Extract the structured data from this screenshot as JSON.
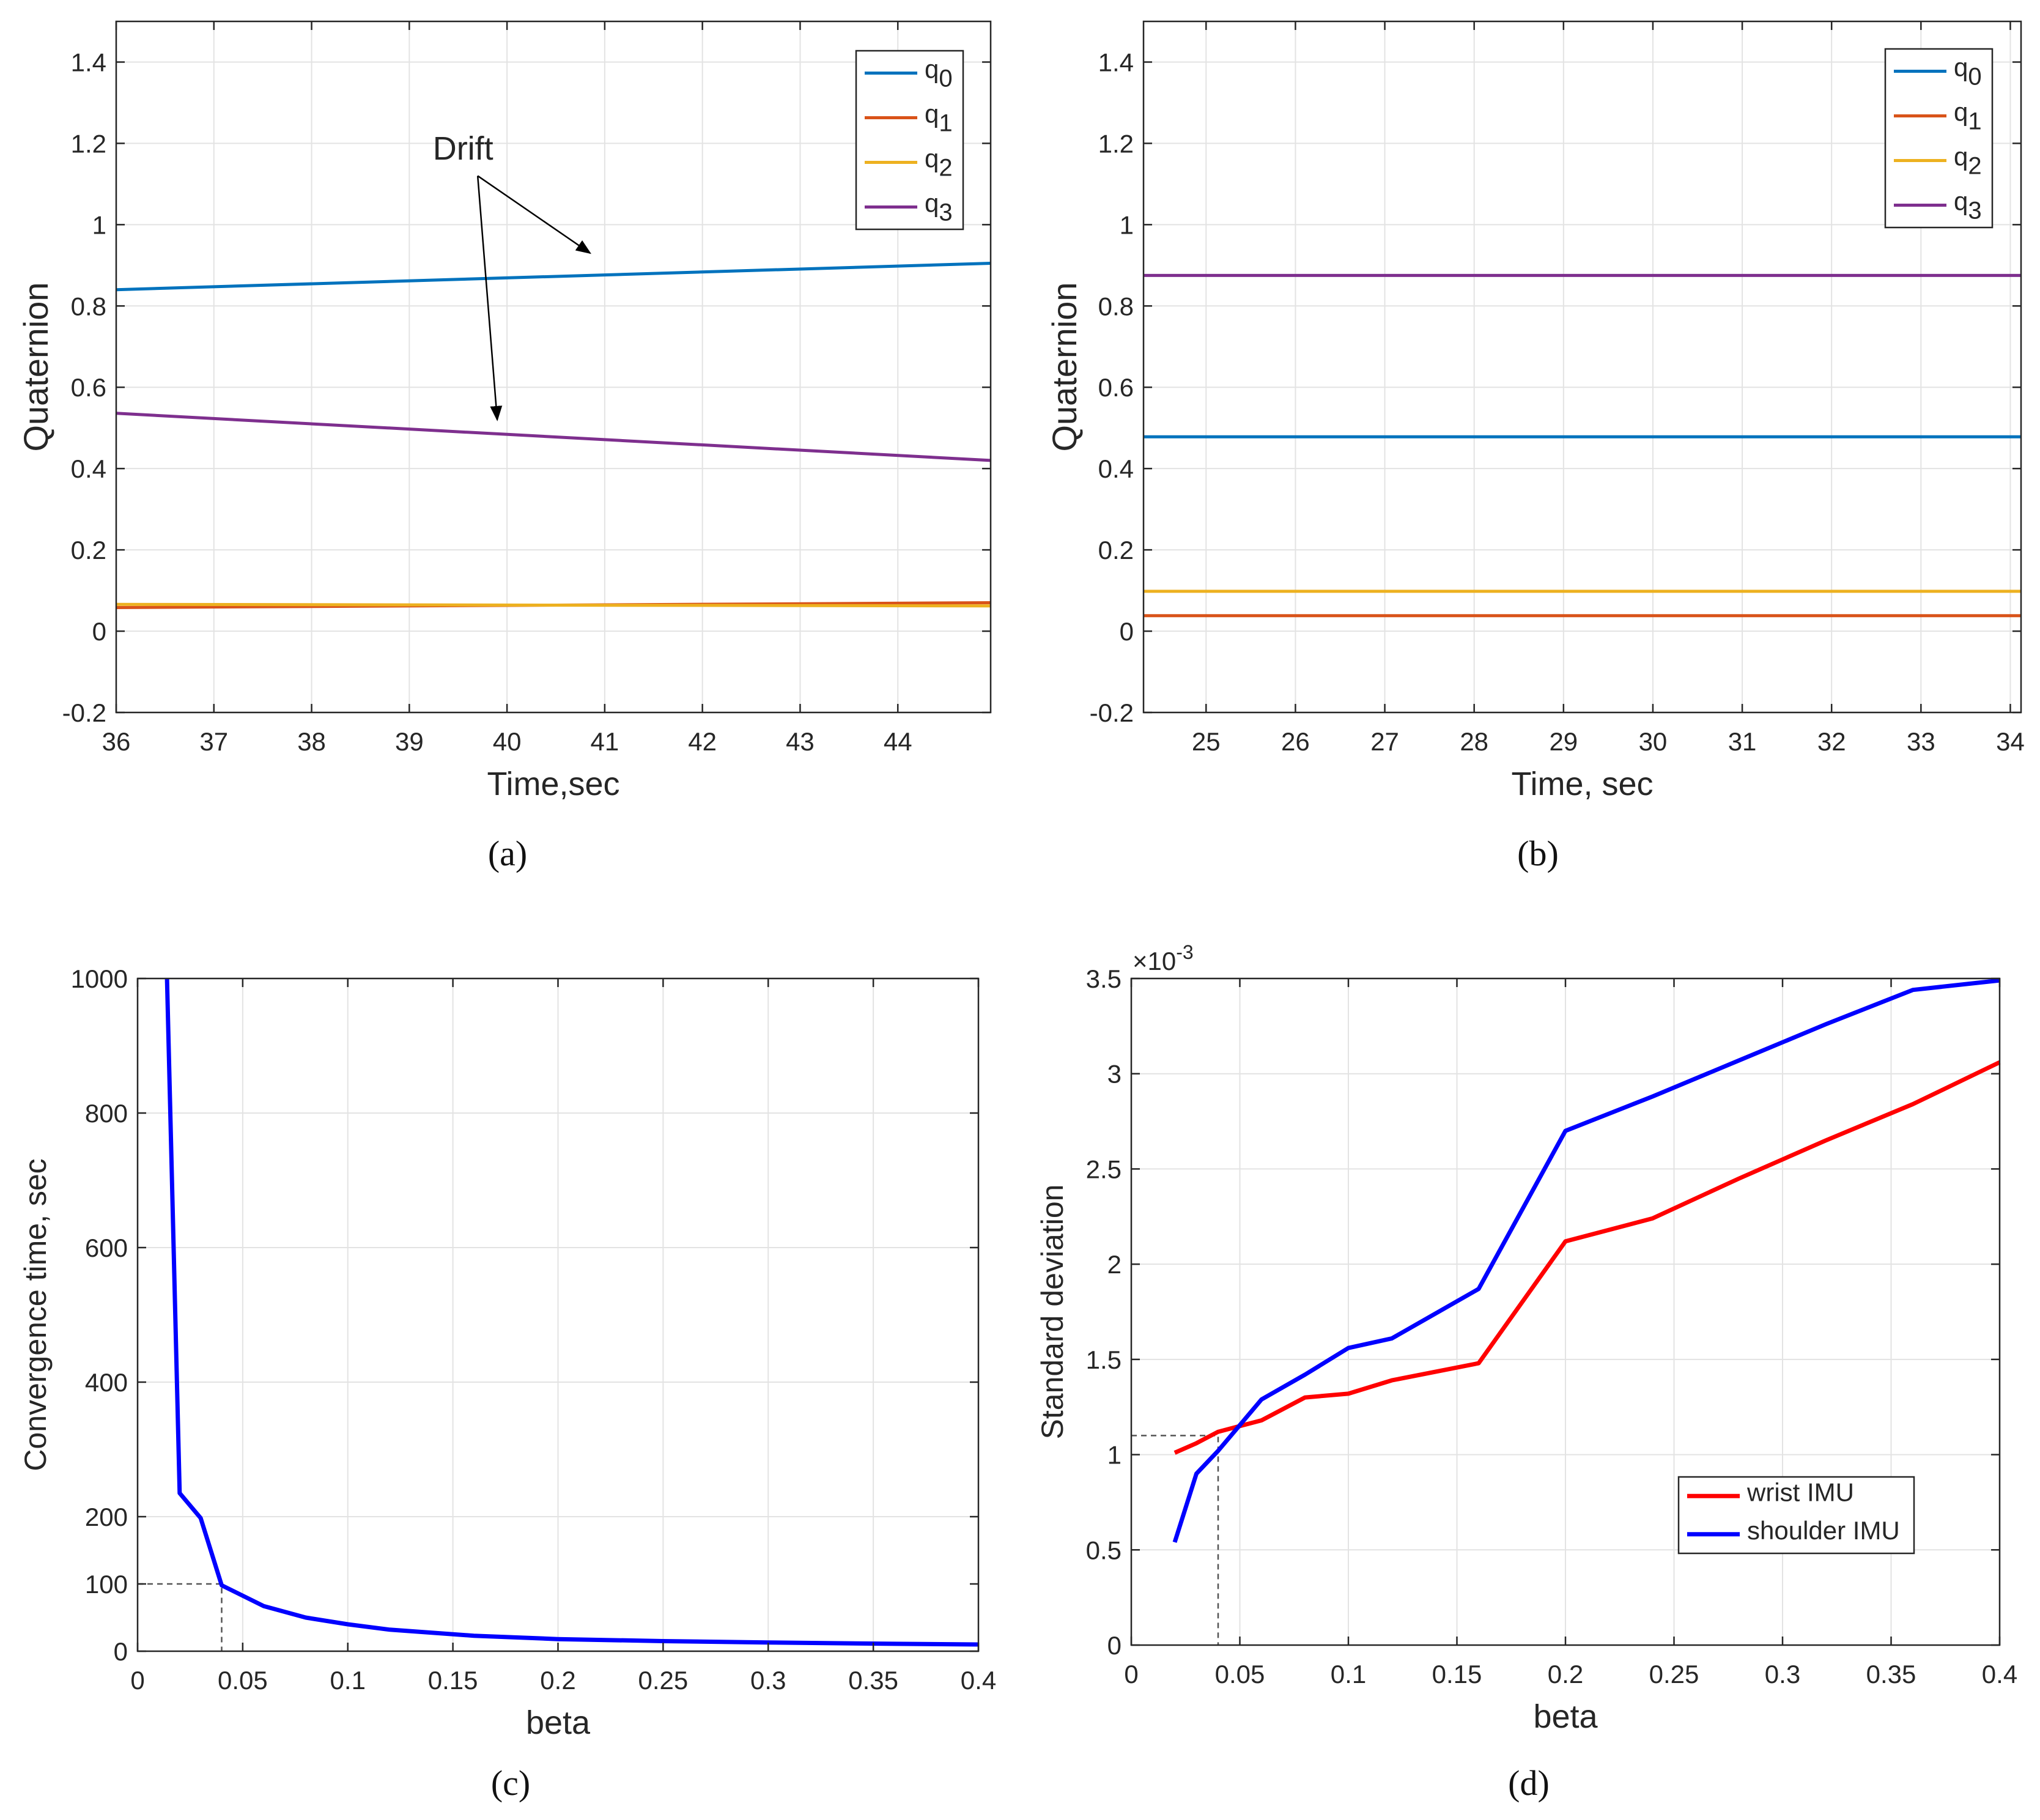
{
  "figure": {
    "captions": [
      "(a)",
      "(b)",
      "(c)",
      "(d)"
    ]
  },
  "colors": {
    "q0": "#0072BD",
    "q1": "#D95319",
    "q2": "#EDB120",
    "q3": "#7E2F8E",
    "blue": "#0000FF",
    "red": "#FF0000"
  },
  "chart_data": [
    {
      "id": "a",
      "type": "line",
      "xlabel": "Time,sec",
      "ylabel": "Quaternion",
      "xlim": [
        36,
        44.95
      ],
      "ylim": [
        -0.2,
        1.5
      ],
      "xticks": [
        36,
        37,
        38,
        39,
        40,
        41,
        42,
        43,
        44
      ],
      "yticks": [
        -0.2,
        0,
        0.2,
        0.4,
        0.6,
        0.8,
        1,
        1.2,
        1.4
      ],
      "ytick_labels": [
        "-0.2",
        "0",
        "0.2",
        "0.4",
        "0.6",
        "0.8",
        "1",
        "1.2",
        "1.4"
      ],
      "grid": true,
      "legend": "top-right",
      "series": [
        {
          "name": "q",
          "sub": "0",
          "color_key": "q0",
          "x": [
            36,
            44.95
          ],
          "y": [
            0.84,
            0.905
          ]
        },
        {
          "name": "q",
          "sub": "1",
          "color_key": "q1",
          "x": [
            36,
            44.95
          ],
          "y": [
            0.058,
            0.07
          ]
        },
        {
          "name": "q",
          "sub": "2",
          "color_key": "q2",
          "x": [
            36,
            44.95
          ],
          "y": [
            0.066,
            0.062
          ]
        },
        {
          "name": "q",
          "sub": "3",
          "color_key": "q3",
          "x": [
            36,
            44.95
          ],
          "y": [
            0.536,
            0.42
          ]
        }
      ],
      "annotation": {
        "text": "Drift",
        "text_at": [
          39.55,
          1.16
        ],
        "arrows": [
          {
            "from": [
              39.7,
              1.12
            ],
            "to": [
              40.85,
              0.93
            ]
          },
          {
            "from": [
              39.7,
              1.12
            ],
            "to": [
              39.9,
              0.52
            ]
          }
        ]
      }
    },
    {
      "id": "b",
      "type": "line",
      "xlabel": "Time, sec",
      "ylabel": "Quaternion",
      "xlim": [
        24.3,
        34.12
      ],
      "ylim": [
        -0.2,
        1.5
      ],
      "xticks": [
        25,
        26,
        27,
        28,
        29,
        30,
        31,
        32,
        33,
        34
      ],
      "yticks": [
        -0.2,
        0,
        0.2,
        0.4,
        0.6,
        0.8,
        1,
        1.2,
        1.4
      ],
      "ytick_labels": [
        "-0.2",
        "0",
        "0.2",
        "0.4",
        "0.6",
        "0.8",
        "1",
        "1.2",
        "1.4"
      ],
      "grid": true,
      "legend": "top-right",
      "series": [
        {
          "name": "q",
          "sub": "0",
          "color_key": "q0",
          "x": [
            24.3,
            34.12
          ],
          "y": [
            0.478,
            0.478
          ]
        },
        {
          "name": "q",
          "sub": "1",
          "color_key": "q1",
          "x": [
            24.3,
            34.12
          ],
          "y": [
            0.038,
            0.038
          ]
        },
        {
          "name": "q",
          "sub": "2",
          "color_key": "q2",
          "x": [
            24.3,
            34.12
          ],
          "y": [
            0.098,
            0.098
          ]
        },
        {
          "name": "q",
          "sub": "3",
          "color_key": "q3",
          "x": [
            24.3,
            34.12
          ],
          "y": [
            0.875,
            0.875
          ]
        }
      ]
    },
    {
      "id": "c",
      "type": "line",
      "xlabel": "beta",
      "ylabel": "Convergence time, sec",
      "xlim": [
        0,
        0.4
      ],
      "ylim": [
        0,
        1000
      ],
      "xticks": [
        0,
        0.05,
        0.1,
        0.15,
        0.2,
        0.25,
        0.3,
        0.35,
        0.4
      ],
      "xtick_labels": [
        "0",
        "0.05",
        "0.1",
        "0.15",
        "0.2",
        "0.25",
        "0.3",
        "0.35",
        "0.4"
      ],
      "yticks": [
        0,
        100,
        200,
        400,
        600,
        800,
        1000
      ],
      "ytick_labels": [
        "0",
        "100",
        "200",
        "400",
        "600",
        "800",
        "1000"
      ],
      "grid_y": [
        0,
        200,
        400,
        600,
        800,
        1000
      ],
      "grid": true,
      "series": [
        {
          "name": "convergence",
          "color_key": "blue",
          "x": [
            0.014,
            0.02,
            0.03,
            0.04,
            0.06,
            0.08,
            0.1,
            0.12,
            0.16,
            0.2,
            0.25,
            0.3,
            0.36,
            0.4
          ],
          "y": [
            1000,
            235,
            198,
            98,
            67,
            50,
            40,
            32,
            23,
            18,
            15,
            13,
            11,
            10
          ]
        }
      ],
      "reference": {
        "x": 0.04,
        "y": 100
      }
    },
    {
      "id": "d",
      "type": "line",
      "xlabel": "beta",
      "ylabel": "Standard deviation",
      "exponent": "×10",
      "exponent_power": "-3",
      "xlim": [
        0,
        0.4
      ],
      "ylim": [
        0,
        3.5
      ],
      "xticks": [
        0,
        0.05,
        0.1,
        0.15,
        0.2,
        0.25,
        0.3,
        0.35,
        0.4
      ],
      "xtick_labels": [
        "0",
        "0.05",
        "0.1",
        "0.15",
        "0.2",
        "0.25",
        "0.3",
        "0.35",
        "0.4"
      ],
      "yticks": [
        0,
        0.5,
        1,
        1.5,
        2,
        2.5,
        3,
        3.5
      ],
      "ytick_labels": [
        "0",
        "0.5",
        "1",
        "1.5",
        "2",
        "2.5",
        "3",
        "3.5"
      ],
      "grid": true,
      "legend": "bottom-right",
      "series": [
        {
          "name": "wrist IMU",
          "color_key": "red",
          "x": [
            0.02,
            0.03,
            0.04,
            0.06,
            0.08,
            0.1,
            0.12,
            0.16,
            0.2,
            0.24,
            0.28,
            0.32,
            0.36,
            0.4
          ],
          "y": [
            1.01,
            1.06,
            1.12,
            1.18,
            1.3,
            1.32,
            1.39,
            1.48,
            2.12,
            2.24,
            2.45,
            2.65,
            2.84,
            3.06
          ]
        },
        {
          "name": "shoulder IMU",
          "color_key": "blue",
          "x": [
            0.02,
            0.03,
            0.04,
            0.06,
            0.08,
            0.1,
            0.12,
            0.16,
            0.2,
            0.24,
            0.28,
            0.32,
            0.36,
            0.4
          ],
          "y": [
            0.54,
            0.9,
            1.02,
            1.29,
            1.42,
            1.56,
            1.61,
            1.87,
            2.7,
            2.88,
            3.07,
            3.26,
            3.44,
            3.49
          ]
        }
      ],
      "reference": {
        "x": 0.04,
        "y": 1.1
      }
    }
  ]
}
